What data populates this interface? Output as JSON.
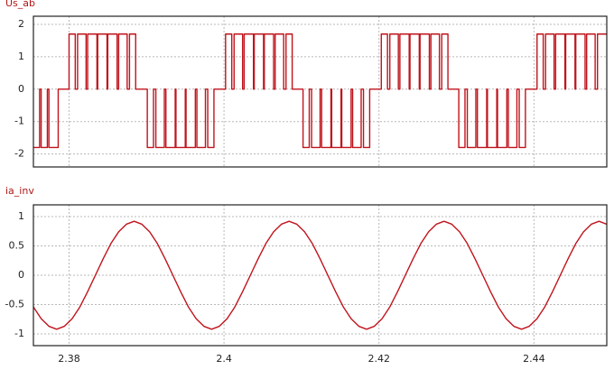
{
  "chart_data": [
    {
      "type": "line",
      "title": "Us_ab",
      "drawstyle": "steps-post",
      "color": "#c0141c",
      "grid": true,
      "xlim": [
        2.3754,
        2.4494
      ],
      "xticks": [
        2.38,
        2.4,
        2.42,
        2.44
      ],
      "ylim": [
        -2.4,
        2.25
      ],
      "yticks": [
        -2,
        -1,
        0,
        1,
        2
      ],
      "x": [
        2.3754,
        2.3762,
        2.3764,
        2.3772,
        2.3774,
        2.3786,
        2.38,
        2.3808,
        2.3811,
        2.3822,
        2.3824,
        2.3836,
        2.3837,
        2.3849,
        2.385,
        2.3862,
        2.3864,
        2.3875,
        2.3878,
        2.3886,
        2.3901,
        2.3909,
        2.3912,
        2.3923,
        2.3925,
        2.3937,
        2.3938,
        2.395,
        2.3951,
        2.3963,
        2.3965,
        2.3976,
        2.3979,
        2.3987,
        2.4002,
        2.401,
        2.4013,
        2.4024,
        2.4026,
        2.4038,
        2.4039,
        2.4051,
        2.4052,
        2.4064,
        2.4066,
        2.4077,
        2.408,
        2.4088,
        2.4102,
        2.411,
        2.4113,
        2.4124,
        2.4126,
        2.4138,
        2.4139,
        2.4151,
        2.4152,
        2.4164,
        2.4166,
        2.4177,
        2.418,
        2.4188,
        2.4203,
        2.4211,
        2.4214,
        2.4225,
        2.4227,
        2.4239,
        2.424,
        2.4252,
        2.4253,
        2.4265,
        2.4267,
        2.4278,
        2.4281,
        2.4289,
        2.4303,
        2.4311,
        2.4314,
        2.4325,
        2.4327,
        2.4339,
        2.434,
        2.4352,
        2.4353,
        2.4365,
        2.4367,
        2.4378,
        2.4381,
        2.4389,
        2.4404,
        2.4412,
        2.4415,
        2.4426,
        2.4428,
        2.444,
        2.4441,
        2.4453,
        2.4454,
        2.4466,
        2.4468,
        2.4479,
        2.4482,
        2.4494
      ],
      "values": [
        -1.8,
        0,
        -1.8,
        0,
        -1.8,
        0,
        1.7,
        0,
        1.7,
        0,
        1.7,
        0,
        1.7,
        0,
        1.7,
        0,
        1.7,
        0,
        1.7,
        0,
        -1.8,
        0,
        -1.8,
        0,
        -1.8,
        0,
        -1.8,
        0,
        -1.8,
        0,
        -1.8,
        0,
        -1.8,
        0,
        1.7,
        0,
        1.7,
        0,
        1.7,
        0,
        1.7,
        0,
        1.7,
        0,
        1.7,
        0,
        1.7,
        0,
        -1.8,
        0,
        -1.8,
        0,
        -1.8,
        0,
        -1.8,
        0,
        -1.8,
        0,
        -1.8,
        0,
        -1.8,
        0,
        1.7,
        0,
        1.7,
        0,
        1.7,
        0,
        1.7,
        0,
        1.7,
        0,
        1.7,
        0,
        1.7,
        0,
        -1.8,
        0,
        -1.8,
        0,
        -1.8,
        0,
        -1.8,
        0,
        -1.8,
        0,
        -1.8,
        0,
        -1.8,
        0,
        1.7,
        0,
        1.7,
        0,
        1.7,
        0,
        1.7,
        0,
        1.7,
        0,
        1.7,
        0,
        1.7,
        1.7
      ]
    },
    {
      "type": "line",
      "title": "ia_inv",
      "drawstyle": "linear",
      "color": "#c0141c",
      "grid": true,
      "xlim": [
        2.3754,
        2.4494
      ],
      "xticks": [
        2.38,
        2.4,
        2.42,
        2.44
      ],
      "ylim": [
        -1.2,
        1.2
      ],
      "yticks": [
        -1,
        -0.5,
        0,
        0.5,
        1
      ],
      "x": [
        2.3754,
        2.3764,
        2.3774,
        2.3784,
        2.3794,
        2.3804,
        2.3814,
        2.3824,
        2.3834,
        2.3844,
        2.3854,
        2.3864,
        2.3874,
        2.3884,
        2.3894,
        2.3904,
        2.3914,
        2.3924,
        2.3934,
        2.3944,
        2.3954,
        2.3964,
        2.3974,
        2.3984,
        2.3994,
        2.4004,
        2.4014,
        2.4024,
        2.4034,
        2.4044,
        2.4054,
        2.4064,
        2.4074,
        2.4084,
        2.4094,
        2.4104,
        2.4114,
        2.4124,
        2.4134,
        2.4144,
        2.4154,
        2.4164,
        2.4174,
        2.4184,
        2.4194,
        2.4204,
        2.4214,
        2.4224,
        2.4234,
        2.4244,
        2.4254,
        2.4264,
        2.4274,
        2.4284,
        2.4294,
        2.4304,
        2.4314,
        2.4324,
        2.4334,
        2.4344,
        2.4354,
        2.4364,
        2.4374,
        2.4384,
        2.4394,
        2.4404,
        2.4414,
        2.4424,
        2.4434,
        2.4444,
        2.4454,
        2.4464,
        2.4474,
        2.4484,
        2.4494
      ],
      "values": [
        -0.54,
        -0.74,
        -0.87,
        -0.92,
        -0.87,
        -0.74,
        -0.54,
        -0.28,
        0,
        0.28,
        0.54,
        0.74,
        0.87,
        0.92,
        0.87,
        0.74,
        0.54,
        0.28,
        0,
        -0.28,
        -0.54,
        -0.74,
        -0.87,
        -0.92,
        -0.87,
        -0.74,
        -0.54,
        -0.28,
        0,
        0.28,
        0.54,
        0.74,
        0.87,
        0.92,
        0.87,
        0.74,
        0.54,
        0.28,
        0,
        -0.28,
        -0.54,
        -0.74,
        -0.87,
        -0.92,
        -0.87,
        -0.74,
        -0.54,
        -0.28,
        0,
        0.28,
        0.54,
        0.74,
        0.87,
        0.92,
        0.87,
        0.74,
        0.54,
        0.28,
        0,
        -0.28,
        -0.54,
        -0.74,
        -0.87,
        -0.92,
        -0.87,
        -0.74,
        -0.54,
        -0.28,
        0,
        0.28,
        0.54,
        0.74,
        0.87,
        0.92,
        0.87
      ]
    }
  ]
}
